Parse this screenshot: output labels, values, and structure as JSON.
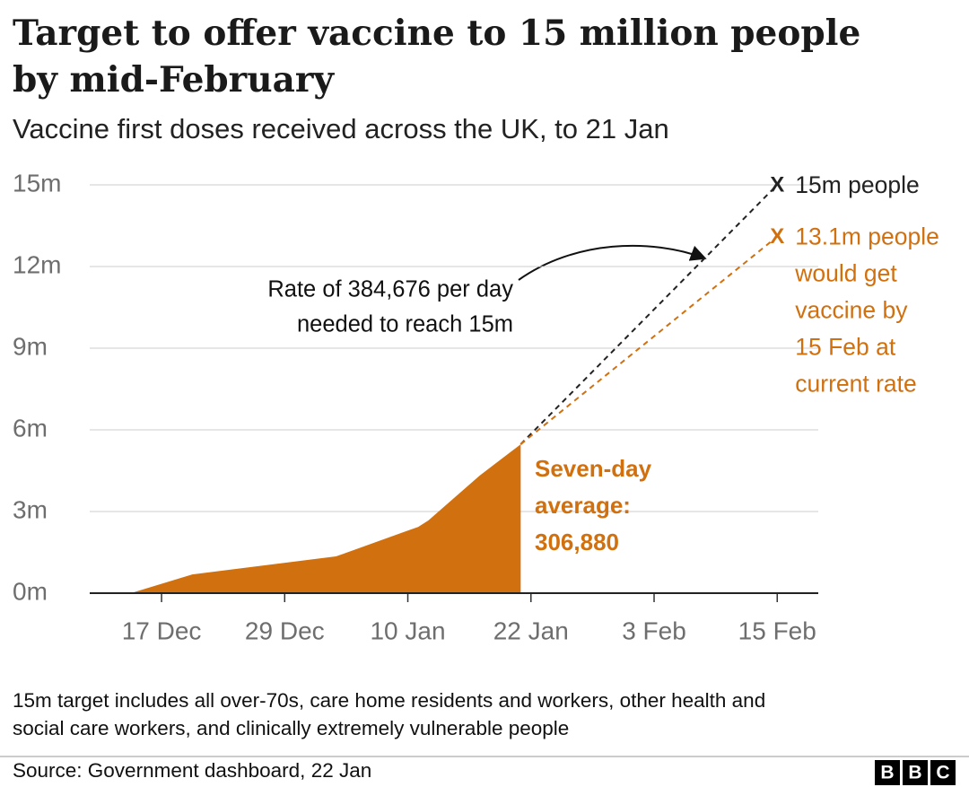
{
  "chart_data": {
    "type": "area",
    "title": [
      "Target to offer vaccine to 15 million people",
      "by mid-February"
    ],
    "subtitle": "Vaccine first doses received across the UK, to 21 Jan",
    "color": "#d1700f",
    "x": [
      "14 Dec",
      "20 Dec",
      "3 Jan",
      "10 Jan",
      "11 Jan",
      "12 Jan",
      "15 Jan",
      "17 Jan",
      "21 Jan"
    ],
    "values": [
      0,
      0.69,
      1.35,
      2.3,
      2.43,
      2.67,
      3.66,
      4.32,
      5.47
    ],
    "xlim": [
      "10 Dec",
      "19 Feb"
    ],
    "xticks": [
      "17 Dec",
      "29 Dec",
      "10 Jan",
      "22 Jan",
      "3 Feb",
      "15 Feb"
    ],
    "ylim": [
      0,
      15
    ],
    "yticks": [
      {
        "value": 0,
        "label": "0m"
      },
      {
        "value": 3,
        "label": "3m"
      },
      {
        "value": 6,
        "label": "6m"
      },
      {
        "value": 9,
        "label": "9m"
      },
      {
        "value": 12,
        "label": "12m"
      },
      {
        "value": 15,
        "label": "15m"
      }
    ],
    "grid": true,
    "projections": [
      {
        "marker": "X",
        "label": [
          "15m people"
        ],
        "color": "#222222",
        "x": [
          "21 Jan",
          "15 Feb"
        ],
        "values": [
          5.47,
          15
        ]
      },
      {
        "marker": "X",
        "label": [
          "13.1m people",
          "would get",
          "vaccine by",
          "15 Feb at",
          "current rate"
        ],
        "color": "#d1700f",
        "x": [
          "21 Jan",
          "15 Feb"
        ],
        "values": [
          5.47,
          13.1
        ]
      }
    ],
    "rate_annotation": [
      "Rate of 384,676 per day",
      "needed to reach 15m"
    ],
    "average_annotation": [
      "Seven-day",
      "average:",
      "306,880"
    ]
  },
  "footnote": [
    "15m target includes all over-70s, care home residents and workers, other health and",
    "social care workers, and clinically extremely vulnerable people"
  ],
  "source": "Source: Government dashboard, 22 Jan",
  "logo": [
    "B",
    "B",
    "C"
  ]
}
